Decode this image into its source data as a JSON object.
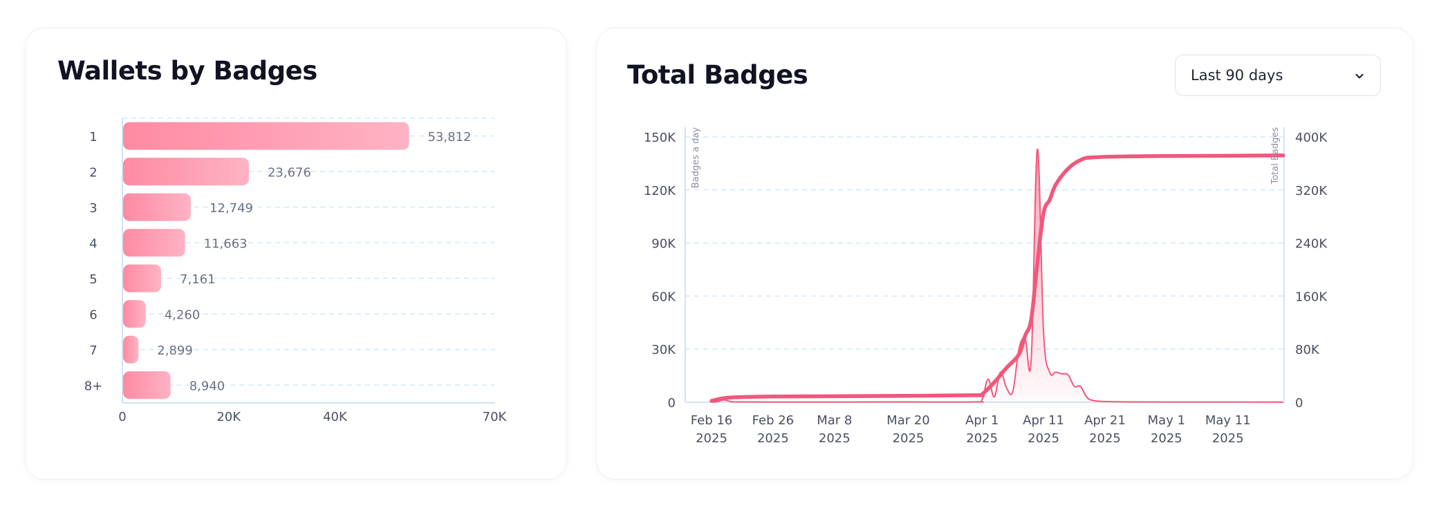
{
  "colors": {
    "accent": "#f2577a",
    "bar_gradient_start": "#ff8aa2",
    "bar_gradient_end": "#ffb3c4",
    "grid": "#cfe8fb",
    "axis": "#cfe4f5",
    "tick_text": "#4a4f63",
    "value_text": "#6b7086"
  },
  "wallets_card": {
    "title": "Wallets by Badges"
  },
  "total_card": {
    "title": "Total Badges",
    "range_select": {
      "value": "Last 90 days",
      "icon": "chevron-down-icon"
    }
  },
  "chart_data": [
    {
      "type": "bar",
      "orientation": "horizontal",
      "title": "Wallets by Badges",
      "categories": [
        "1",
        "2",
        "3",
        "4",
        "5",
        "6",
        "7",
        "8+"
      ],
      "values": [
        53812,
        23676,
        12749,
        11663,
        7161,
        4260,
        2899,
        8940
      ],
      "value_labels": [
        "53,812",
        "23,676",
        "12,749",
        "11,663",
        "7,161",
        "4,260",
        "2,899",
        "8,940"
      ],
      "x_ticks": [
        0,
        20000,
        40000,
        70000
      ],
      "x_tick_labels": [
        "0",
        "20K",
        "40K",
        "70K"
      ],
      "xlim": [
        0,
        70000
      ],
      "grid": true
    },
    {
      "type": "line",
      "title": "Total Badges",
      "y_left_label": "Badges a day",
      "y_right_label": "Total Badges",
      "ylim_left": [
        0,
        150000
      ],
      "ylim_right": [
        0,
        400000
      ],
      "y_left_ticks": [
        0,
        30000,
        60000,
        90000,
        120000,
        150000
      ],
      "y_left_tick_labels": [
        "0",
        "30K",
        "60K",
        "90K",
        "120K",
        "150K"
      ],
      "y_right_ticks": [
        0,
        80000,
        160000,
        240000,
        320000,
        400000
      ],
      "y_right_tick_labels": [
        "0",
        "80K",
        "160K",
        "240K",
        "320K",
        "400K"
      ],
      "x_range": [
        "2025-02-16",
        "2025-05-20"
      ],
      "x_ticks": [
        "2025-02-16",
        "2025-02-26",
        "2025-03-08",
        "2025-03-20",
        "2025-04-01",
        "2025-04-11",
        "2025-04-21",
        "2025-05-01",
        "2025-05-11"
      ],
      "x_tick_labels": [
        [
          "Feb 16",
          "2025"
        ],
        [
          "Feb 26",
          "2025"
        ],
        [
          "Mar 8",
          "2025"
        ],
        [
          "Mar 20",
          "2025"
        ],
        [
          "Apr 1",
          "2025"
        ],
        [
          "Apr 11",
          "2025"
        ],
        [
          "Apr 21",
          "2025"
        ],
        [
          "May 1",
          "2025"
        ],
        [
          "May 11",
          "2025"
        ]
      ],
      "grid": true,
      "series": [
        {
          "axis": "right",
          "style": "thick-line",
          "points": [
            [
              "2025-02-16",
              2000
            ],
            [
              "2025-02-19",
              7000
            ],
            [
              "2025-02-26",
              8500
            ],
            [
              "2025-03-08",
              9000
            ],
            [
              "2025-03-20",
              9600
            ],
            [
              "2025-03-31",
              10500
            ],
            [
              "2025-04-01",
              12000
            ],
            [
              "2025-04-03",
              30000
            ],
            [
              "2025-04-05",
              52000
            ],
            [
              "2025-04-07",
              72000
            ],
            [
              "2025-04-08",
              100000
            ],
            [
              "2025-04-09",
              125000
            ],
            [
              "2025-04-10",
              210000
            ],
            [
              "2025-04-11",
              285000
            ],
            [
              "2025-04-12",
              305000
            ],
            [
              "2025-04-13",
              328000
            ],
            [
              "2025-04-15",
              352000
            ],
            [
              "2025-04-17",
              365000
            ],
            [
              "2025-04-19",
              369000
            ],
            [
              "2025-04-25",
              370500
            ],
            [
              "2025-05-01",
              371000
            ],
            [
              "2025-05-11",
              371500
            ],
            [
              "2025-05-20",
              372000
            ]
          ]
        },
        {
          "axis": "left",
          "style": "thin-line-area",
          "points": [
            [
              "2025-02-16",
              0
            ],
            [
              "2025-02-17",
              400
            ],
            [
              "2025-02-18",
              1300
            ],
            [
              "2025-02-19",
              500
            ],
            [
              "2025-02-20",
              200
            ],
            [
              "2025-02-26",
              100
            ],
            [
              "2025-03-20",
              150
            ],
            [
              "2025-03-31",
              200
            ],
            [
              "2025-04-01",
              1500
            ],
            [
              "2025-04-02",
              13000
            ],
            [
              "2025-04-03",
              3000
            ],
            [
              "2025-04-04",
              17000
            ],
            [
              "2025-04-05",
              8000
            ],
            [
              "2025-04-06",
              6000
            ],
            [
              "2025-04-07",
              30000
            ],
            [
              "2025-04-08",
              36000
            ],
            [
              "2025-04-09",
              24000
            ],
            [
              "2025-04-10",
              143000
            ],
            [
              "2025-04-11",
              40000
            ],
            [
              "2025-04-12",
              17000
            ],
            [
              "2025-04-13",
              17000
            ],
            [
              "2025-04-14",
              16000
            ],
            [
              "2025-04-15",
              15500
            ],
            [
              "2025-04-16",
              9000
            ],
            [
              "2025-04-17",
              9000
            ],
            [
              "2025-04-18",
              3000
            ],
            [
              "2025-04-19",
              1000
            ],
            [
              "2025-04-21",
              400
            ],
            [
              "2025-04-25",
              200
            ],
            [
              "2025-05-01",
              100
            ],
            [
              "2025-05-20",
              50
            ]
          ]
        }
      ]
    }
  ]
}
